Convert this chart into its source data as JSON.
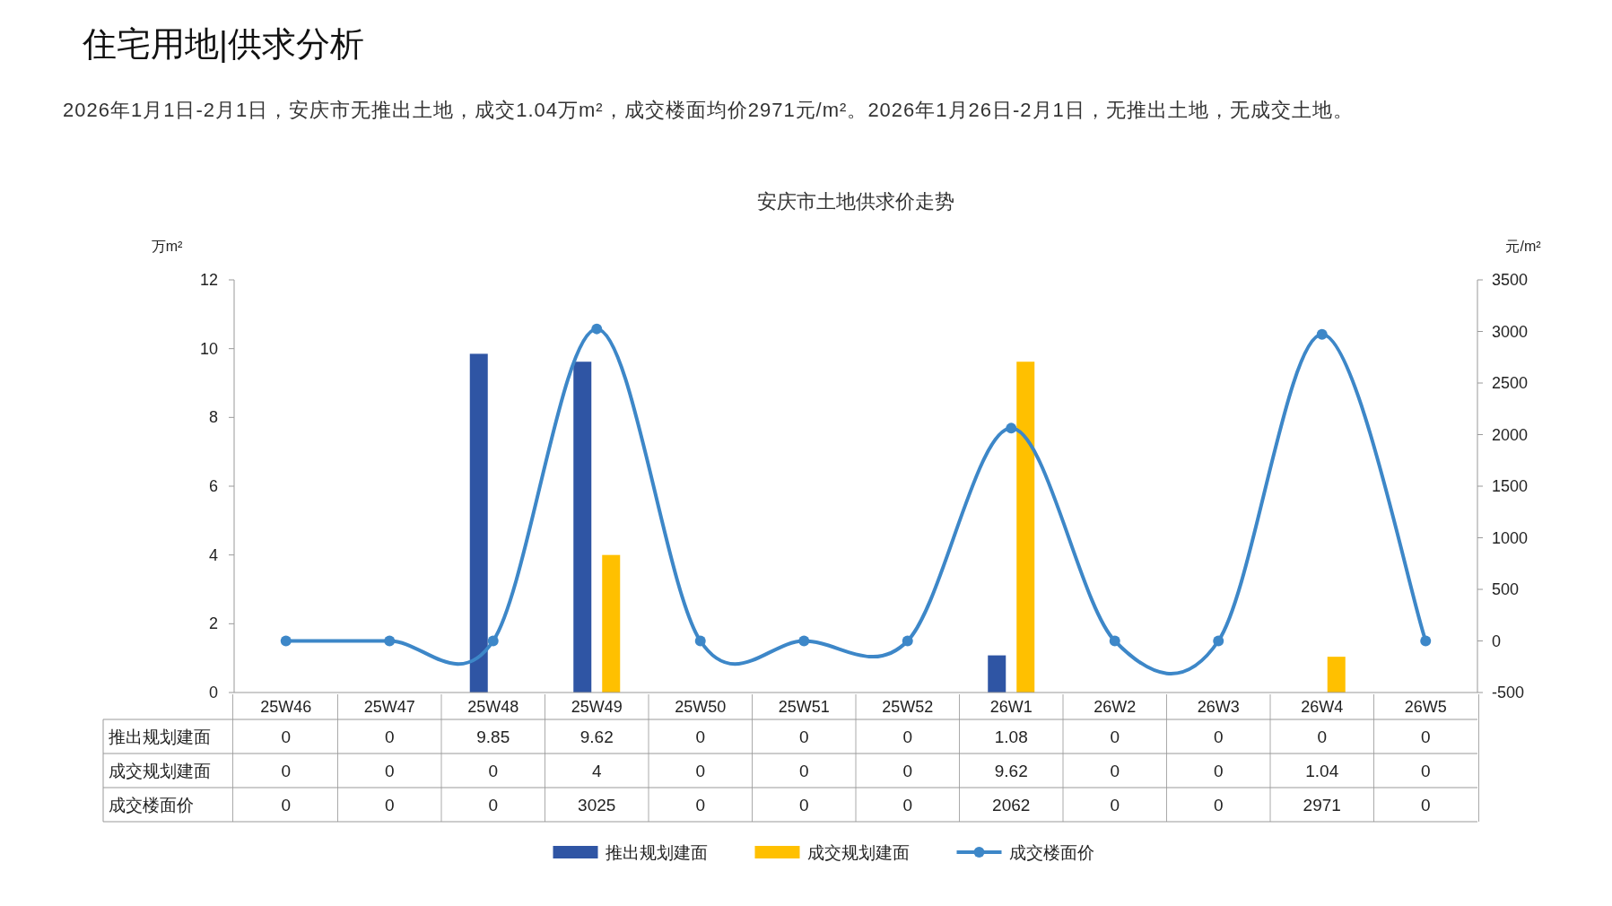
{
  "chart_data": {
    "type": "bar",
    "title": "安庆市土地供求价走势",
    "annotations": [
      "住宅用地|供求分析",
      "2026年1月1日-2月1日，安庆市无推出土地，成交1.04万m²，成交楼面均价2971元/m²。2026年1月26日-2月1日，无推出土地，无成交土地。"
    ],
    "categories": [
      "25W46",
      "25W47",
      "25W48",
      "25W49",
      "25W50",
      "25W51",
      "25W52",
      "26W1",
      "26W2",
      "26W3",
      "26W4",
      "26W5"
    ],
    "series": [
      {
        "name": "推出规划建面",
        "color": "#2f55a4",
        "values": [
          0,
          0,
          9.85,
          9.62,
          0,
          0,
          0,
          1.08,
          0,
          0,
          0,
          0
        ]
      },
      {
        "name": "成交规划建面",
        "color": "#ffc000",
        "values": [
          0,
          0,
          0,
          4,
          0,
          0,
          0,
          9.62,
          0,
          0,
          1.04,
          0
        ]
      },
      {
        "name": "成交楼面价",
        "type": "line",
        "axis": "y2",
        "color": "#3d87c8",
        "marker": "circle",
        "values": [
          0,
          0,
          0,
          3025,
          0,
          0,
          0,
          2062,
          0,
          0,
          2971,
          0
        ]
      }
    ],
    "ylabel": "万m²",
    "y2label": "元/m²",
    "ylim": [
      0,
      12
    ],
    "yticks": [
      0,
      2,
      4,
      6,
      8,
      10,
      12
    ],
    "y2lim": [
      -500,
      3500
    ],
    "y2ticks": [
      -500,
      0,
      500,
      1000,
      1500,
      2000,
      2500,
      3000,
      3500
    ],
    "data_labels": true,
    "legend": "bottom",
    "grid": false
  }
}
